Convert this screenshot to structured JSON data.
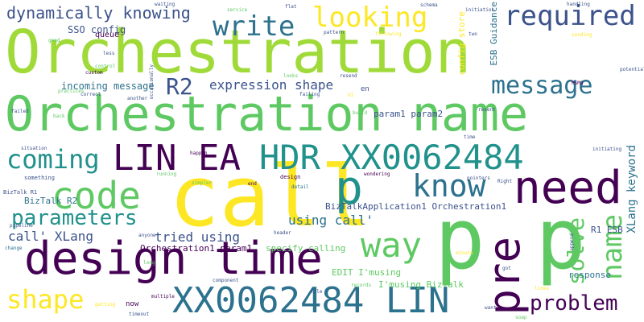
{
  "palette": {
    "purple": "#440154",
    "indigo": "#3b528b",
    "teal": "#21918c",
    "green": "#5ec962",
    "yellow": "#fde725"
  },
  "words": [
    {
      "text": "Orchestration",
      "color": "#a0da39"
    },
    {
      "text": "Orchestration name",
      "color": "#5ec962"
    },
    {
      "text": "call",
      "color": "#fde725"
    },
    {
      "text": "p p",
      "color": "#5ec962"
    },
    {
      "text": "design time",
      "color": "#440154"
    },
    {
      "text": "XX0062484 LIN",
      "color": "#2c728e"
    },
    {
      "text": "LIN EA",
      "color": "#440154"
    },
    {
      "text": "HDR XX0062484",
      "color": "#21918c"
    },
    {
      "text": "need",
      "color": "#440154"
    },
    {
      "text": "pre",
      "color": "#440154"
    },
    {
      "text": "code",
      "color": "#5ec962"
    },
    {
      "text": "write",
      "color": "#2c728e"
    },
    {
      "text": "looking",
      "color": "#fde725"
    },
    {
      "text": "required",
      "color": "#3b528b"
    },
    {
      "text": "know",
      "color": "#2c728e"
    },
    {
      "text": "way",
      "color": "#5ec962"
    },
    {
      "text": "p",
      "color": "#21918c"
    },
    {
      "text": "message",
      "color": "#2c728e"
    },
    {
      "text": "R2",
      "color": "#3b528b"
    },
    {
      "text": "parameters",
      "color": "#21918c"
    },
    {
      "text": "coming",
      "color": "#21918c"
    },
    {
      "text": "dynamically knowing",
      "color": "#3b528b"
    },
    {
      "text": "shape",
      "color": "#fde725"
    },
    {
      "text": "problem",
      "color": "#440154"
    },
    {
      "text": "solve",
      "color": "#5ec962"
    },
    {
      "text": "name",
      "color": "#5ec962"
    },
    {
      "text": "expression shape",
      "color": "#3b528b"
    },
    {
      "text": "call' XLang",
      "color": "#3b528b"
    },
    {
      "text": "tried using",
      "color": "#3b528b"
    },
    {
      "text": "using call'",
      "color": "#2c728e"
    },
    {
      "text": "XLang keyword",
      "color": "#2c728e"
    },
    {
      "text": "ESB Guidance",
      "color": "#2c728e"
    },
    {
      "text": "config store",
      "color": "#fde725"
    },
    {
      "text": "param1 param2",
      "color": "#3b528b"
    },
    {
      "text": "incoming message",
      "color": "#2c728e"
    },
    {
      "text": "SSO config",
      "color": "#3b528b"
    },
    {
      "text": "BizTalk R2",
      "color": "#2c728e"
    },
    {
      "text": "BizTalkApplication1 Orchestration1",
      "color": "#3b528b"
    },
    {
      "text": "R1 ESB",
      "color": "#3b528b"
    },
    {
      "text": "specify calling",
      "color": "#5ec962"
    },
    {
      "text": "Orchestration1 param1",
      "color": "#440154"
    },
    {
      "text": "EDIT I'musing",
      "color": "#5ec962"
    },
    {
      "text": "I'musing BizTalk",
      "color": "#5ec962"
    },
    {
      "text": "response",
      "color": "#2c728e"
    },
    {
      "text": "queue",
      "color": "#440154"
    },
    {
      "text": "now",
      "color": "#440154"
    },
    {
      "text": "en",
      "color": "#3b528b"
    },
    {
      "text": "waiting",
      "color": "#3b528b"
    },
    {
      "text": "service",
      "color": "#5ec962"
    },
    {
      "text": "flat",
      "color": "#3b528b"
    },
    {
      "text": "schema",
      "color": "#3b528b"
    },
    {
      "text": "initiation",
      "color": "#3b528b"
    },
    {
      "text": "handling",
      "color": "#3b528b"
    },
    {
      "text": "pattern",
      "color": "#3b528b"
    },
    {
      "text": "following",
      "color": "#fde725"
    },
    {
      "text": "two",
      "color": "#3b528b"
    },
    {
      "text": "sending",
      "color": "#fde725"
    },
    {
      "text": "good",
      "color": "#5ec962"
    },
    {
      "text": "less",
      "color": "#3b528b"
    },
    {
      "text": "control",
      "color": "#5ec962"
    },
    {
      "text": "custom",
      "color": "#440154"
    },
    {
      "text": "occasionally",
      "color": "#3b528b"
    },
    {
      "text": "looks",
      "color": "#5ec962"
    },
    {
      "text": "resend",
      "color": "#3b528b"
    },
    {
      "text": "potential",
      "color": "#3b528b"
    },
    {
      "text": "MSMQ",
      "color": "#440154"
    },
    {
      "text": "practices",
      "color": "#5ec962"
    },
    {
      "text": "correct",
      "color": "#3b528b"
    },
    {
      "text": "another",
      "color": "#3b528b"
    },
    {
      "text": "failing",
      "color": "#3b528b"
    },
    {
      "text": "UI",
      "color": "#fde725"
    },
    {
      "text": "failed",
      "color": "#3b528b"
    },
    {
      "text": "back",
      "color": "#5ec962"
    },
    {
      "text": "build",
      "color": "#5ec962"
    },
    {
      "text": "resent",
      "color": "#3b528b"
    },
    {
      "text": "time",
      "color": "#3b528b"
    },
    {
      "text": "situation",
      "color": "#3b528b"
    },
    {
      "text": "happen",
      "color": "#440154"
    },
    {
      "text": "initiating",
      "color": "#3b528b"
    },
    {
      "text": "something",
      "color": "#3b528b"
    },
    {
      "text": "running",
      "color": "#5ec962"
    },
    {
      "text": "design",
      "color": "#440154"
    },
    {
      "text": "wondering",
      "color": "#440154"
    },
    {
      "text": "pointers",
      "color": "#3b528b"
    },
    {
      "text": "Right",
      "color": "#3b528b"
    },
    {
      "text": "simpler",
      "color": "#5ec962"
    },
    {
      "text": "end",
      "color": "#440154"
    },
    {
      "text": "detail",
      "color": "#2c728e"
    },
    {
      "text": "BizTalk R1",
      "color": "#3b528b"
    },
    {
      "text": "pipeline",
      "color": "#3b528b"
    },
    {
      "text": "anyone",
      "color": "#3b528b"
    },
    {
      "text": "header",
      "color": "#3b528b"
    },
    {
      "text": "change",
      "color": "#2c728e"
    },
    {
      "text": "minute",
      "color": "#fde725"
    },
    {
      "text": "long",
      "color": "#5ec962"
    },
    {
      "text": "got",
      "color": "#3b528b"
    },
    {
      "text": "component",
      "color": "#3b528b"
    },
    {
      "text": "records",
      "color": "#5ec962"
    },
    {
      "text": "file",
      "color": "#3b528b"
    },
    {
      "text": "getting",
      "color": "#fde725"
    },
    {
      "text": "timeout",
      "color": "#3b528b"
    },
    {
      "text": "multiple",
      "color": "#440154"
    },
    {
      "text": "want",
      "color": "#3b528b"
    },
    {
      "text": "append",
      "color": "#3b528b"
    },
    {
      "text": "lines",
      "color": "#fde725"
    },
    {
      "text": "soap",
      "color": "#5ec962"
    }
  ]
}
